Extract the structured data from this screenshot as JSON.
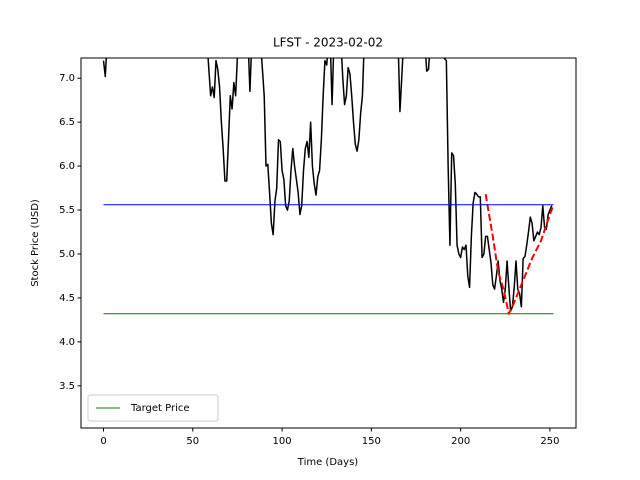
{
  "chart_data": {
    "type": "line",
    "title": "LFST - 2023-02-02",
    "xlabel": "Time (Days)",
    "ylabel": "Stock Price (USD)",
    "xlim": [
      -12.6,
      264.6
    ],
    "ylim": [
      3.02,
      7.23
    ],
    "xticks": [
      0,
      50,
      100,
      150,
      200,
      250
    ],
    "yticks": [
      3.5,
      {
        "value": 4,
        "label": "4.0"
      },
      4.5,
      {
        "value": 5,
        "label": "5.0"
      },
      5.5,
      {
        "value": 6,
        "label": "6.0"
      },
      6.5,
      {
        "value": 7,
        "label": "7.0"
      }
    ],
    "legend": "lower left",
    "series": [
      {
        "color": "#000000",
        "linewidth": 1.5,
        "linestyle": "-",
        "x": [
          0,
          1,
          2,
          58,
          59,
          60,
          61,
          62,
          63,
          64,
          65,
          66,
          67,
          68,
          69,
          70,
          71,
          72,
          73,
          74,
          75,
          76,
          81,
          82,
          83,
          88,
          89,
          90,
          91,
          92,
          93,
          94,
          95,
          96,
          97,
          98,
          99,
          100,
          101,
          102,
          103,
          104,
          105,
          106,
          107,
          108,
          109,
          110,
          111,
          112,
          113,
          114,
          115,
          116,
          117,
          118,
          119,
          120,
          121,
          122,
          123,
          124,
          125,
          126,
          127,
          128,
          129,
          133,
          134,
          135,
          136,
          137,
          138,
          139,
          140,
          141,
          142,
          143,
          144,
          145,
          146,
          165,
          166,
          167,
          168,
          180,
          181,
          182,
          183,
          192,
          193,
          194,
          195,
          196,
          197,
          198,
          199,
          200,
          201,
          202,
          203,
          204,
          205,
          206,
          207,
          208,
          209,
          210,
          211,
          212,
          213,
          214,
          215,
          216,
          217,
          218,
          219,
          220,
          221,
          222,
          223,
          224,
          225,
          226,
          227,
          228,
          229,
          230,
          231,
          232,
          233,
          234,
          235,
          236,
          237,
          238,
          239,
          240,
          241,
          242,
          243,
          244,
          245,
          246,
          247,
          248,
          249,
          250,
          251
        ],
        "values": [
          7.2,
          7.02,
          7.4,
          7.4,
          7.1,
          6.8,
          6.9,
          6.78,
          7.2,
          7.1,
          6.9,
          6.5,
          6.2,
          5.83,
          5.83,
          6.3,
          6.8,
          6.65,
          6.95,
          6.8,
          7.25,
          7.4,
          7.4,
          6.85,
          7.4,
          7.4,
          7.1,
          6.8,
          6.0,
          6.02,
          5.7,
          5.35,
          5.22,
          5.6,
          5.75,
          6.3,
          6.28,
          5.95,
          5.85,
          5.55,
          5.5,
          5.6,
          5.95,
          6.2,
          6.0,
          5.85,
          5.7,
          5.45,
          5.55,
          5.95,
          6.2,
          6.28,
          6.1,
          6.5,
          6.0,
          5.8,
          5.67,
          5.88,
          5.95,
          6.3,
          6.8,
          7.2,
          7.15,
          7.4,
          7.4,
          6.7,
          7.4,
          7.4,
          7.0,
          6.7,
          6.8,
          7.12,
          7.05,
          6.8,
          6.5,
          6.25,
          6.17,
          6.3,
          6.6,
          6.8,
          7.4,
          7.4,
          6.62,
          7.0,
          7.4,
          7.4,
          7.08,
          7.1,
          7.4,
          7.2,
          6.0,
          5.1,
          6.15,
          6.12,
          5.8,
          5.1,
          5.0,
          4.96,
          5.08,
          5.05,
          5.1,
          4.75,
          4.62,
          5.2,
          5.58,
          5.7,
          5.68,
          5.65,
          5.65,
          4.96,
          5.0,
          5.2,
          5.2,
          5.05,
          4.9,
          4.65,
          4.6,
          4.75,
          4.92,
          4.7,
          4.6,
          4.45,
          4.6,
          4.92,
          4.62,
          4.35,
          4.4,
          4.62,
          4.92,
          4.6,
          4.55,
          4.4,
          4.95,
          4.97,
          5.1,
          5.25,
          5.42,
          5.35,
          5.15,
          5.2,
          5.25,
          5.22,
          5.3,
          5.55,
          5.3,
          5.28,
          5.45,
          5.5,
          5.55
        ]
      },
      {
        "color": "#ff0000",
        "linewidth": 2,
        "linestyle": "--",
        "x": [
          214,
          218,
          221,
          224,
          227,
          230,
          235,
          240,
          245,
          250,
          252
        ],
        "values": [
          5.68,
          5.2,
          4.8,
          4.6,
          4.32,
          4.45,
          4.7,
          4.95,
          5.15,
          5.45,
          5.56
        ]
      },
      {
        "color": "#0000ff",
        "linewidth": 1,
        "linestyle": "-",
        "x": [
          0,
          252
        ],
        "values": [
          5.56,
          5.56
        ]
      },
      {
        "name": "Target Price",
        "color": "#008000",
        "linewidth": 1,
        "linestyle": "-",
        "x": [
          0,
          252
        ],
        "values": [
          4.32,
          4.32
        ]
      }
    ]
  }
}
